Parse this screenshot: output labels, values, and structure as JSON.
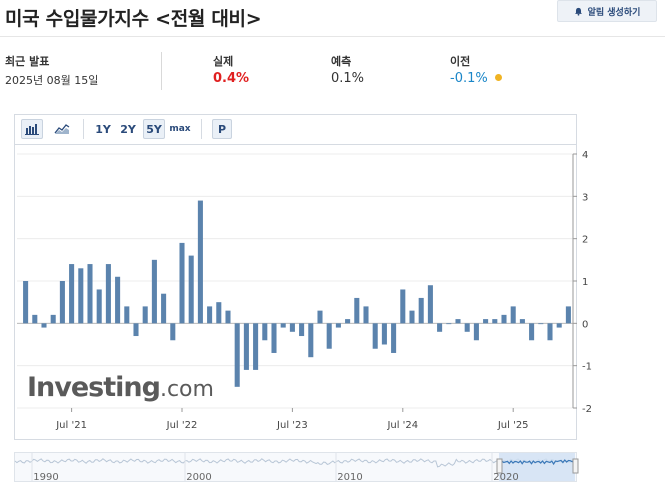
{
  "header": {
    "title": "미국 수입물가지수 <전월 대비>",
    "alert_label": "알림 생성하기"
  },
  "stats": {
    "latest": {
      "label": "최근 발표",
      "value": "2025년 08월 15일"
    },
    "actual": {
      "label": "실제",
      "value": "0.4%",
      "color": "#e02020"
    },
    "forecast": {
      "label": "예측",
      "value": "0.1%"
    },
    "previous": {
      "label": "이전",
      "value": "-0.1%",
      "color": "#1a86c8",
      "dot_color": "#f0b323"
    }
  },
  "toolbar": {
    "ranges": [
      "1Y",
      "2Y",
      "5Y",
      "max"
    ],
    "selected_range": "5Y",
    "p_label": "P"
  },
  "logo": {
    "main": "Investing",
    "suffix": ".com"
  },
  "chart_data": {
    "type": "bar",
    "color": "#5b83ad",
    "ylim": [
      -2,
      4
    ],
    "yticks": [
      -2,
      -1,
      0,
      1,
      2,
      3,
      4
    ],
    "x_tick_labels": [
      "Jul '21",
      "Jul '22",
      "Jul '23",
      "Jul '24",
      "Jul '25"
    ],
    "x_tick_index": [
      5,
      17,
      29,
      41,
      53
    ],
    "values": [
      1.0,
      0.2,
      -0.1,
      0.2,
      1.0,
      1.4,
      1.3,
      1.4,
      0.8,
      1.4,
      1.1,
      0.4,
      -0.3,
      0.4,
      1.5,
      0.7,
      -0.4,
      1.9,
      1.6,
      2.9,
      0.4,
      0.5,
      0.3,
      -1.5,
      -1.1,
      -1.1,
      -0.4,
      -0.7,
      -0.1,
      -0.2,
      -0.3,
      -0.8,
      0.3,
      -0.6,
      -0.1,
      0.1,
      0.6,
      0.4,
      -0.6,
      -0.5,
      -0.7,
      0.8,
      0.3,
      0.6,
      0.9,
      -0.2,
      0.0,
      0.1,
      -0.2,
      -0.4,
      0.1,
      0.1,
      0.2,
      0.4,
      0.1,
      -0.4,
      0.0,
      -0.4,
      -0.1,
      0.4
    ],
    "navigator": {
      "labels": [
        "1990",
        "2000",
        "2010",
        "2020"
      ]
    }
  }
}
